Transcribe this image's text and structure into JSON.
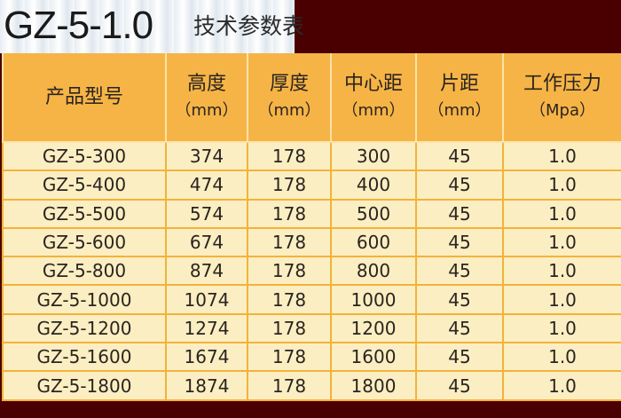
{
  "title": "GZ-5-1.0",
  "subtitle": "技术参数表",
  "table": {
    "headers": [
      {
        "label": "产品型号",
        "unit": ""
      },
      {
        "label": "高度",
        "unit": "（mm）"
      },
      {
        "label": "厚度",
        "unit": "（mm）"
      },
      {
        "label": "中心距",
        "unit": "（mm）"
      },
      {
        "label": "片距",
        "unit": "（mm）"
      },
      {
        "label": "工作压力",
        "unit": "（Mpa）"
      }
    ],
    "rows": [
      [
        "GZ-5-300",
        "374",
        "178",
        "300",
        "45",
        "1.0"
      ],
      [
        "GZ-5-400",
        "474",
        "178",
        "400",
        "45",
        "1.0"
      ],
      [
        "GZ-5-500",
        "574",
        "178",
        "500",
        "45",
        "1.0"
      ],
      [
        "GZ-5-600",
        "674",
        "178",
        "600",
        "45",
        "1.0"
      ],
      [
        "GZ-5-800",
        "874",
        "178",
        "800",
        "45",
        "1.0"
      ],
      [
        "GZ-5-1000",
        "1074",
        "178",
        "1000",
        "45",
        "1.0"
      ],
      [
        "GZ-5-1200",
        "1274",
        "178",
        "1200",
        "45",
        "1.0"
      ],
      [
        "GZ-5-1600",
        "1674",
        "178",
        "1600",
        "45",
        "1.0"
      ],
      [
        "GZ-5-1800",
        "1874",
        "178",
        "1800",
        "45",
        "1.0"
      ]
    ]
  },
  "colors": {
    "header_bg": "#f6b446",
    "row_bg": "#fbeec2",
    "border": "#f3b23a",
    "banner_dark": "#4a0000"
  }
}
